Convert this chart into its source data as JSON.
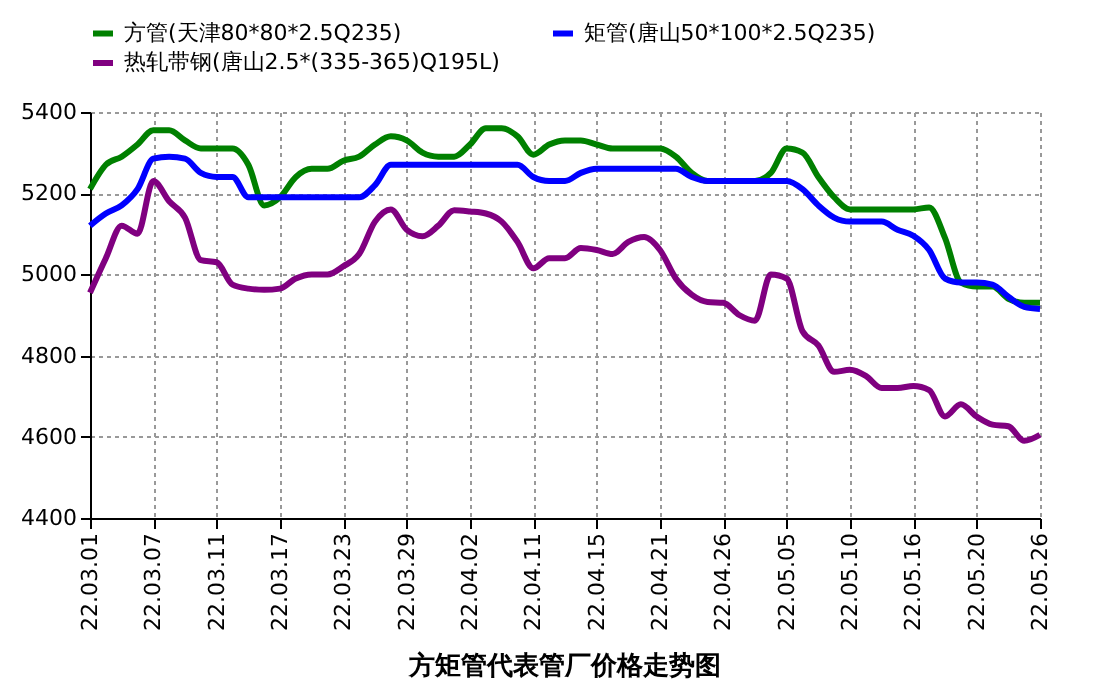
{
  "chart_data": {
    "type": "line",
    "title": "方矩管代表管厂价格走势图",
    "categories": [
      "22.03.01",
      null,
      null,
      null,
      "22.03.07",
      null,
      null,
      null,
      "22.03.11",
      null,
      null,
      null,
      "22.03.17",
      null,
      null,
      null,
      "22.03.23",
      null,
      null,
      null,
      "22.03.29",
      null,
      null,
      null,
      "22.04.02",
      null,
      null,
      null,
      "22.04.11",
      null,
      null,
      null,
      "22.04.15",
      null,
      null,
      null,
      "22.04.21",
      null,
      null,
      null,
      "22.04.26",
      null,
      null,
      null,
      "22.05.05",
      null,
      null,
      null,
      "22.05.10",
      null,
      null,
      null,
      "22.05.16",
      null,
      null,
      null,
      "22.05.20",
      null,
      null,
      null,
      "22.05.26"
    ],
    "series": [
      {
        "name": "方管(天津80*80*2.5Q235)",
        "color": "#008000",
        "values": [
          5210,
          5270,
          5290,
          5320,
          5355,
          5355,
          5330,
          5310,
          5310,
          5310,
          5270,
          5170,
          5190,
          5240,
          5260,
          5260,
          5280,
          5290,
          5320,
          5340,
          5330,
          5300,
          5290,
          5290,
          5320,
          5360,
          5360,
          5340,
          5295,
          5320,
          5330,
          5330,
          5320,
          5310,
          5310,
          5310,
          5310,
          5290,
          5250,
          5230,
          5230,
          5230,
          5230,
          5250,
          5310,
          5300,
          5240,
          5190,
          5160,
          5160,
          5160,
          5160,
          5160,
          5165,
          5090,
          4980,
          4970,
          4970,
          4940,
          4930,
          4930
        ]
      },
      {
        "name": "矩管(唐山50*100*2.5Q235)",
        "color": "#0000ff",
        "values": [
          5120,
          5150,
          5170,
          5210,
          5285,
          5290,
          5285,
          5250,
          5240,
          5240,
          5190,
          5190,
          5190,
          5190,
          5190,
          5190,
          5190,
          5190,
          5220,
          5270,
          5270,
          5270,
          5270,
          5270,
          5270,
          5270,
          5270,
          5270,
          5240,
          5230,
          5230,
          5250,
          5260,
          5260,
          5260,
          5260,
          5260,
          5260,
          5240,
          5230,
          5230,
          5230,
          5230,
          5230,
          5230,
          5210,
          5170,
          5140,
          5130,
          5130,
          5130,
          5110,
          5095,
          5060,
          4990,
          4980,
          4980,
          4975,
          4945,
          4920,
          4915
        ]
      },
      {
        "name": "热轧带钢(唐山2.5*(335-365)Q195L)",
        "color": "#800080",
        "values": [
          4955,
          5040,
          5120,
          5100,
          5230,
          5180,
          5140,
          5035,
          5030,
          4975,
          4965,
          4962,
          4965,
          4990,
          5000,
          5000,
          5020,
          5050,
          5130,
          5160,
          5110,
          5094,
          5120,
          5158,
          5155,
          5150,
          5130,
          5080,
          5015,
          5040,
          5040,
          5065,
          5060,
          5050,
          5080,
          5092,
          5060,
          4990,
          4950,
          4932,
          4930,
          4900,
          4886,
          5000,
          4990,
          4860,
          4825,
          4760,
          4765,
          4750,
          4720,
          4720,
          4725,
          4715,
          4650,
          4680,
          4650,
          4630,
          4626,
          4590,
          4605
        ]
      }
    ],
    "ylim": [
      4400,
      5400
    ],
    "yticks": [
      4400,
      4600,
      4800,
      5000,
      5200,
      5400
    ],
    "grid": true,
    "legend": "top",
    "line_style": "solid",
    "marker": "none"
  }
}
